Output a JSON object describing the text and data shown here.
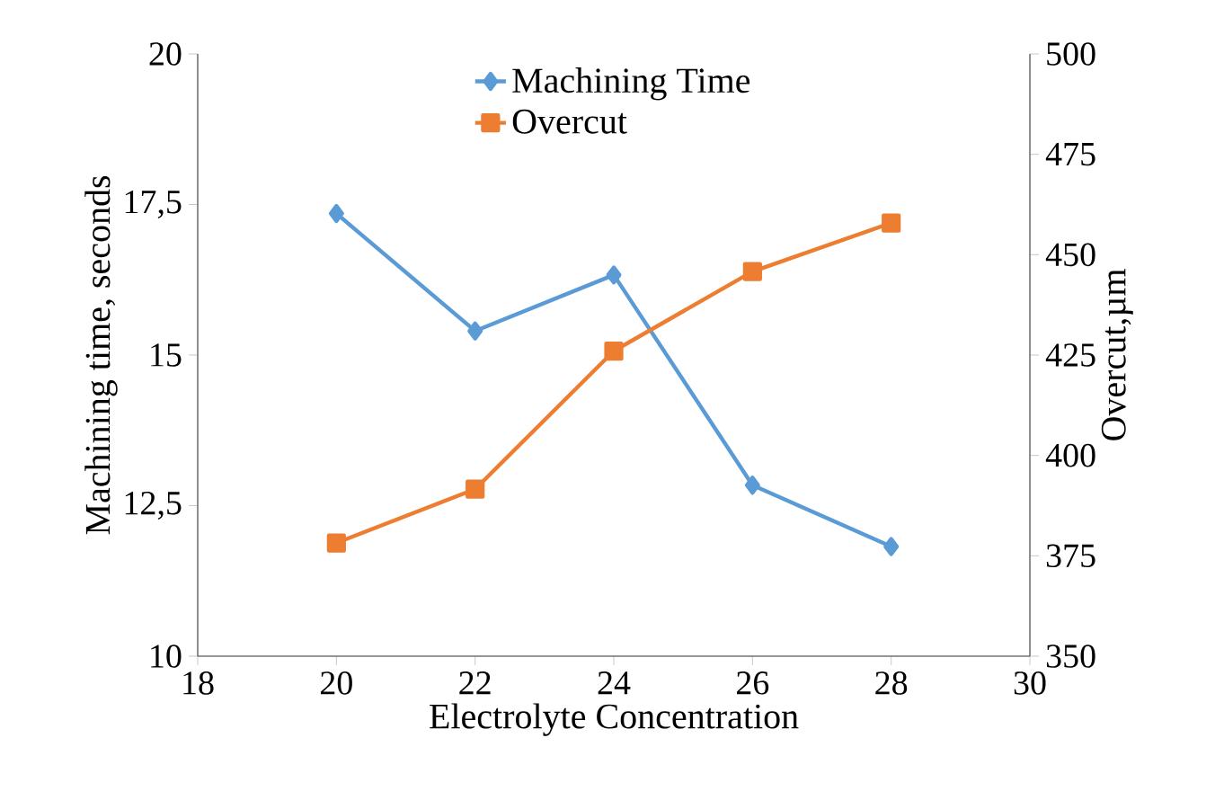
{
  "chart_data": {
    "type": "line",
    "xlabel": "Electrolyte Concentration",
    "ylabel": "Machining time, seconds",
    "y2label": "Overcut,µm",
    "x": [
      20,
      22,
      24,
      26,
      28
    ],
    "series": [
      {
        "name": "Machining Time",
        "color": "#5b9bd5",
        "marker": "diamond",
        "values": [
          17.35,
          15.4,
          16.33,
          12.84,
          11.82
        ]
      },
      {
        "name": "Overcut",
        "color": "#ed7d31",
        "marker": "square",
        "axis": "y2",
        "values": [
          378.2,
          391.6,
          426,
          445.8,
          457.9
        ]
      }
    ],
    "xlim": [
      18,
      30
    ],
    "xticks": [
      18,
      20,
      22,
      24,
      26,
      28,
      30
    ],
    "ylim": [
      10,
      20
    ],
    "yticks": [
      10,
      {
        "value": 12.5,
        "label": "12,5"
      },
      15,
      {
        "value": 17.5,
        "label": "17,5"
      },
      20
    ],
    "y2lim": [
      350,
      500
    ],
    "y2ticks": [
      350,
      375,
      400,
      425,
      450,
      475,
      500
    ],
    "legend": "top",
    "grid": false,
    "line_style": "solid"
  }
}
